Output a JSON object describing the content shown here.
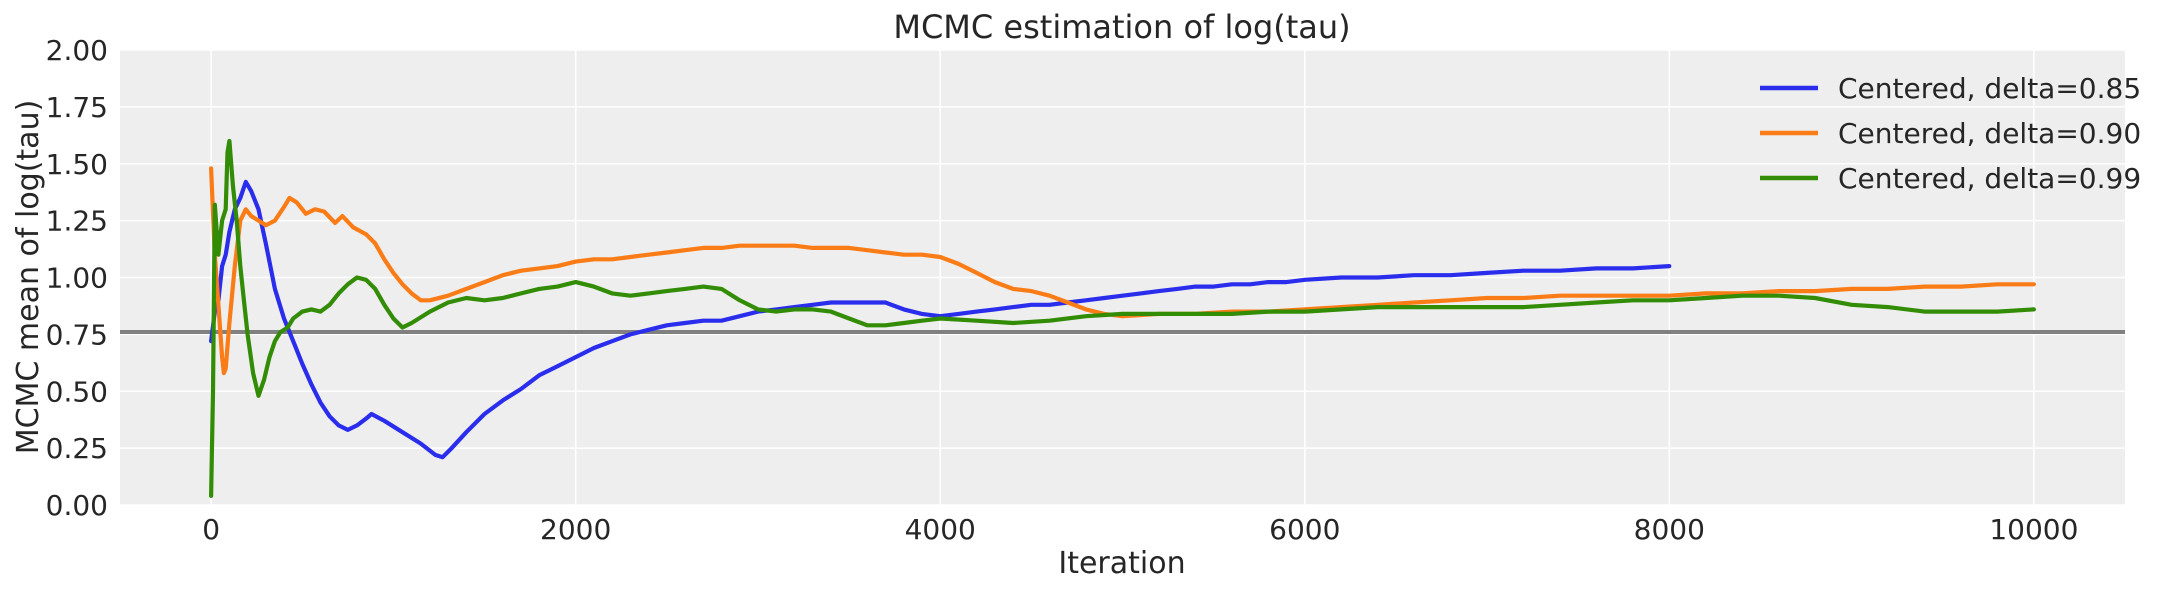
{
  "chart_data": {
    "type": "line",
    "title": "MCMC estimation of log(tau)",
    "xlabel": "Iteration",
    "ylabel": "MCMC mean of log(tau)",
    "xlim": [
      -500,
      10500
    ],
    "ylim": [
      0,
      2
    ],
    "xticks": [
      0,
      2000,
      4000,
      6000,
      8000,
      10000
    ],
    "xtick_labels": [
      "0",
      "2000",
      "4000",
      "6000",
      "8000",
      "10000"
    ],
    "yticks": [
      0,
      0.25,
      0.5,
      0.75,
      1.0,
      1.25,
      1.5,
      1.75,
      2.0
    ],
    "ytick_labels": [
      "0.00",
      "0.25",
      "0.50",
      "0.75",
      "1.00",
      "1.25",
      "1.50",
      "1.75",
      "2.00"
    ],
    "grid": true,
    "legend_position": "top-right",
    "reference_line": {
      "y": 0.7606,
      "color": "#808080"
    },
    "colors": {
      "background": "#eeeeee",
      "grid": "#ffffff"
    },
    "series": [
      {
        "name": "Centered, delta=0.85",
        "color": "#2a2eec",
        "points": [
          [
            0,
            0.72
          ],
          [
            20,
            0.85
          ],
          [
            40,
            0.9
          ],
          [
            60,
            1.05
          ],
          [
            80,
            1.1
          ],
          [
            100,
            1.2
          ],
          [
            130,
            1.3
          ],
          [
            160,
            1.35
          ],
          [
            190,
            1.42
          ],
          [
            220,
            1.38
          ],
          [
            260,
            1.3
          ],
          [
            300,
            1.15
          ],
          [
            350,
            0.95
          ],
          [
            400,
            0.82
          ],
          [
            450,
            0.72
          ],
          [
            500,
            0.62
          ],
          [
            550,
            0.53
          ],
          [
            600,
            0.45
          ],
          [
            650,
            0.39
          ],
          [
            700,
            0.35
          ],
          [
            750,
            0.33
          ],
          [
            800,
            0.35
          ],
          [
            850,
            0.38
          ],
          [
            880,
            0.4
          ],
          [
            950,
            0.37
          ],
          [
            1050,
            0.32
          ],
          [
            1150,
            0.27
          ],
          [
            1230,
            0.22
          ],
          [
            1270,
            0.21
          ],
          [
            1320,
            0.25
          ],
          [
            1400,
            0.32
          ],
          [
            1500,
            0.4
          ],
          [
            1600,
            0.46
          ],
          [
            1700,
            0.51
          ],
          [
            1800,
            0.57
          ],
          [
            1900,
            0.61
          ],
          [
            2000,
            0.65
          ],
          [
            2100,
            0.69
          ],
          [
            2200,
            0.72
          ],
          [
            2300,
            0.75
          ],
          [
            2400,
            0.77
          ],
          [
            2500,
            0.79
          ],
          [
            2600,
            0.8
          ],
          [
            2700,
            0.81
          ],
          [
            2800,
            0.81
          ],
          [
            2900,
            0.83
          ],
          [
            3000,
            0.85
          ],
          [
            3100,
            0.86
          ],
          [
            3200,
            0.87
          ],
          [
            3300,
            0.88
          ],
          [
            3400,
            0.89
          ],
          [
            3500,
            0.89
          ],
          [
            3600,
            0.89
          ],
          [
            3700,
            0.89
          ],
          [
            3800,
            0.86
          ],
          [
            3900,
            0.84
          ],
          [
            4000,
            0.83
          ],
          [
            4100,
            0.84
          ],
          [
            4200,
            0.85
          ],
          [
            4300,
            0.86
          ],
          [
            4400,
            0.87
          ],
          [
            4500,
            0.88
          ],
          [
            4600,
            0.88
          ],
          [
            4700,
            0.89
          ],
          [
            4800,
            0.9
          ],
          [
            4900,
            0.91
          ],
          [
            5000,
            0.92
          ],
          [
            5100,
            0.93
          ],
          [
            5200,
            0.94
          ],
          [
            5300,
            0.95
          ],
          [
            5400,
            0.96
          ],
          [
            5500,
            0.96
          ],
          [
            5600,
            0.97
          ],
          [
            5700,
            0.97
          ],
          [
            5800,
            0.98
          ],
          [
            5900,
            0.98
          ],
          [
            6000,
            0.99
          ],
          [
            6200,
            1.0
          ],
          [
            6400,
            1.0
          ],
          [
            6600,
            1.01
          ],
          [
            6800,
            1.01
          ],
          [
            7000,
            1.02
          ],
          [
            7200,
            1.03
          ],
          [
            7400,
            1.03
          ],
          [
            7600,
            1.04
          ],
          [
            7800,
            1.04
          ],
          [
            8000,
            1.05
          ]
        ]
      },
      {
        "name": "Centered, delta=0.90",
        "color": "#fa7c17",
        "points": [
          [
            0,
            1.48
          ],
          [
            20,
            1.1
          ],
          [
            40,
            0.88
          ],
          [
            60,
            0.65
          ],
          [
            70,
            0.58
          ],
          [
            80,
            0.6
          ],
          [
            100,
            0.8
          ],
          [
            130,
            1.05
          ],
          [
            160,
            1.25
          ],
          [
            190,
            1.3
          ],
          [
            220,
            1.27
          ],
          [
            260,
            1.25
          ],
          [
            300,
            1.23
          ],
          [
            350,
            1.25
          ],
          [
            400,
            1.31
          ],
          [
            430,
            1.35
          ],
          [
            470,
            1.33
          ],
          [
            520,
            1.28
          ],
          [
            570,
            1.3
          ],
          [
            620,
            1.29
          ],
          [
            680,
            1.24
          ],
          [
            720,
            1.27
          ],
          [
            780,
            1.22
          ],
          [
            850,
            1.19
          ],
          [
            900,
            1.15
          ],
          [
            950,
            1.08
          ],
          [
            1000,
            1.02
          ],
          [
            1050,
            0.97
          ],
          [
            1100,
            0.93
          ],
          [
            1150,
            0.9
          ],
          [
            1200,
            0.9
          ],
          [
            1300,
            0.92
          ],
          [
            1400,
            0.95
          ],
          [
            1500,
            0.98
          ],
          [
            1600,
            1.01
          ],
          [
            1700,
            1.03
          ],
          [
            1800,
            1.04
          ],
          [
            1900,
            1.05
          ],
          [
            2000,
            1.07
          ],
          [
            2100,
            1.08
          ],
          [
            2200,
            1.08
          ],
          [
            2300,
            1.09
          ],
          [
            2400,
            1.1
          ],
          [
            2500,
            1.11
          ],
          [
            2600,
            1.12
          ],
          [
            2700,
            1.13
          ],
          [
            2800,
            1.13
          ],
          [
            2900,
            1.14
          ],
          [
            3000,
            1.14
          ],
          [
            3100,
            1.14
          ],
          [
            3200,
            1.14
          ],
          [
            3300,
            1.13
          ],
          [
            3400,
            1.13
          ],
          [
            3500,
            1.13
          ],
          [
            3600,
            1.12
          ],
          [
            3700,
            1.11
          ],
          [
            3800,
            1.1
          ],
          [
            3900,
            1.1
          ],
          [
            4000,
            1.09
          ],
          [
            4100,
            1.06
          ],
          [
            4200,
            1.02
          ],
          [
            4300,
            0.98
          ],
          [
            4400,
            0.95
          ],
          [
            4500,
            0.94
          ],
          [
            4600,
            0.92
          ],
          [
            4700,
            0.89
          ],
          [
            4800,
            0.86
          ],
          [
            4900,
            0.84
          ],
          [
            5000,
            0.83
          ],
          [
            5200,
            0.84
          ],
          [
            5400,
            0.84
          ],
          [
            5600,
            0.85
          ],
          [
            5800,
            0.85
          ],
          [
            6000,
            0.86
          ],
          [
            6200,
            0.87
          ],
          [
            6400,
            0.88
          ],
          [
            6600,
            0.89
          ],
          [
            6800,
            0.9
          ],
          [
            7000,
            0.91
          ],
          [
            7200,
            0.91
          ],
          [
            7400,
            0.92
          ],
          [
            7600,
            0.92
          ],
          [
            7800,
            0.92
          ],
          [
            8000,
            0.92
          ],
          [
            8200,
            0.93
          ],
          [
            8400,
            0.93
          ],
          [
            8600,
            0.94
          ],
          [
            8800,
            0.94
          ],
          [
            9000,
            0.95
          ],
          [
            9200,
            0.95
          ],
          [
            9400,
            0.96
          ],
          [
            9600,
            0.96
          ],
          [
            9800,
            0.97
          ],
          [
            10000,
            0.97
          ]
        ]
      },
      {
        "name": "Centered, delta=0.99",
        "color": "#328c06",
        "points": [
          [
            0,
            0.04
          ],
          [
            10,
            0.5
          ],
          [
            20,
            1.32
          ],
          [
            40,
            1.1
          ],
          [
            60,
            1.25
          ],
          [
            80,
            1.3
          ],
          [
            90,
            1.55
          ],
          [
            100,
            1.6
          ],
          [
            120,
            1.4
          ],
          [
            140,
            1.25
          ],
          [
            160,
            1.05
          ],
          [
            180,
            0.9
          ],
          [
            200,
            0.75
          ],
          [
            230,
            0.58
          ],
          [
            260,
            0.48
          ],
          [
            290,
            0.55
          ],
          [
            320,
            0.65
          ],
          [
            350,
            0.72
          ],
          [
            380,
            0.76
          ],
          [
            420,
            0.78
          ],
          [
            450,
            0.82
          ],
          [
            500,
            0.85
          ],
          [
            550,
            0.86
          ],
          [
            600,
            0.85
          ],
          [
            650,
            0.88
          ],
          [
            700,
            0.93
          ],
          [
            750,
            0.97
          ],
          [
            800,
            1.0
          ],
          [
            850,
            0.99
          ],
          [
            900,
            0.95
          ],
          [
            950,
            0.88
          ],
          [
            1000,
            0.82
          ],
          [
            1050,
            0.78
          ],
          [
            1100,
            0.8
          ],
          [
            1200,
            0.85
          ],
          [
            1300,
            0.89
          ],
          [
            1400,
            0.91
          ],
          [
            1500,
            0.9
          ],
          [
            1600,
            0.91
          ],
          [
            1700,
            0.93
          ],
          [
            1800,
            0.95
          ],
          [
            1900,
            0.96
          ],
          [
            2000,
            0.98
          ],
          [
            2100,
            0.96
          ],
          [
            2200,
            0.93
          ],
          [
            2300,
            0.92
          ],
          [
            2400,
            0.93
          ],
          [
            2500,
            0.94
          ],
          [
            2600,
            0.95
          ],
          [
            2700,
            0.96
          ],
          [
            2800,
            0.95
          ],
          [
            2900,
            0.9
          ],
          [
            3000,
            0.86
          ],
          [
            3100,
            0.85
          ],
          [
            3200,
            0.86
          ],
          [
            3300,
            0.86
          ],
          [
            3400,
            0.85
          ],
          [
            3500,
            0.82
          ],
          [
            3600,
            0.79
          ],
          [
            3700,
            0.79
          ],
          [
            3800,
            0.8
          ],
          [
            3900,
            0.81
          ],
          [
            4000,
            0.82
          ],
          [
            4200,
            0.81
          ],
          [
            4400,
            0.8
          ],
          [
            4600,
            0.81
          ],
          [
            4800,
            0.83
          ],
          [
            5000,
            0.84
          ],
          [
            5200,
            0.84
          ],
          [
            5400,
            0.84
          ],
          [
            5600,
            0.84
          ],
          [
            5800,
            0.85
          ],
          [
            6000,
            0.85
          ],
          [
            6200,
            0.86
          ],
          [
            6400,
            0.87
          ],
          [
            6600,
            0.87
          ],
          [
            6800,
            0.87
          ],
          [
            7000,
            0.87
          ],
          [
            7200,
            0.87
          ],
          [
            7400,
            0.88
          ],
          [
            7600,
            0.89
          ],
          [
            7800,
            0.9
          ],
          [
            8000,
            0.9
          ],
          [
            8200,
            0.91
          ],
          [
            8400,
            0.92
          ],
          [
            8600,
            0.92
          ],
          [
            8800,
            0.91
          ],
          [
            9000,
            0.88
          ],
          [
            9200,
            0.87
          ],
          [
            9400,
            0.85
          ],
          [
            9600,
            0.85
          ],
          [
            9800,
            0.85
          ],
          [
            10000,
            0.86
          ]
        ]
      }
    ]
  }
}
